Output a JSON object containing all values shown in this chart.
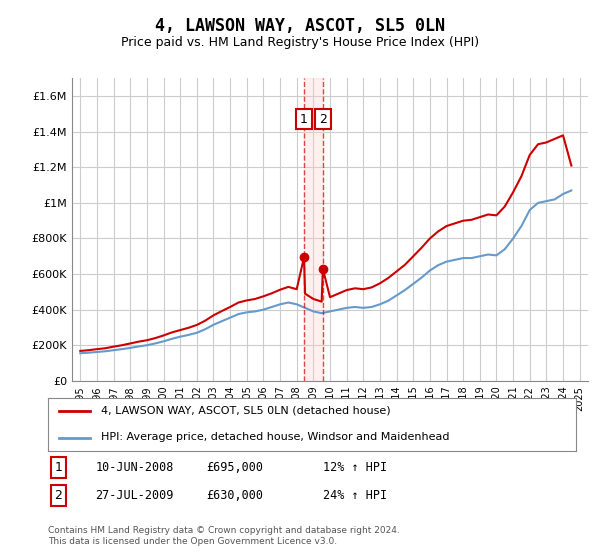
{
  "title": "4, LAWSON WAY, ASCOT, SL5 0LN",
  "subtitle": "Price paid vs. HM Land Registry's House Price Index (HPI)",
  "legend_line1": "4, LAWSON WAY, ASCOT, SL5 0LN (detached house)",
  "legend_line2": "HPI: Average price, detached house, Windsor and Maidenhead",
  "footnote": "Contains HM Land Registry data © Crown copyright and database right 2024.\nThis data is licensed under the Open Government Licence v3.0.",
  "sale1_date": "10-JUN-2008",
  "sale1_price": "£695,000",
  "sale1_hpi": "12% ↑ HPI",
  "sale1_year": 2008.44,
  "sale2_date": "27-JUL-2009",
  "sale2_price": "£630,000",
  "sale2_hpi": "24% ↑ HPI",
  "sale2_year": 2009.57,
  "red_color": "#cc0000",
  "blue_color": "#6699cc",
  "background_color": "#ffffff",
  "grid_color": "#cccccc",
  "ylim": [
    0,
    1700000
  ],
  "yticks": [
    0,
    200000,
    400000,
    600000,
    800000,
    1000000,
    1200000,
    1400000,
    1600000
  ],
  "ytick_labels": [
    "£0",
    "£200K",
    "£400K",
    "£600K",
    "£800K",
    "£1M",
    "£1.2M",
    "£1.4M",
    "£1.6M"
  ],
  "hpi_years": [
    1995,
    1995.5,
    1996,
    1996.5,
    1997,
    1997.5,
    1998,
    1998.5,
    1999,
    1999.5,
    2000,
    2000.5,
    2001,
    2001.5,
    2002,
    2002.5,
    2003,
    2003.5,
    2004,
    2004.5,
    2005,
    2005.5,
    2006,
    2006.5,
    2007,
    2007.5,
    2008,
    2008.5,
    2009,
    2009.5,
    2010,
    2010.5,
    2011,
    2011.5,
    2012,
    2012.5,
    2013,
    2013.5,
    2014,
    2014.5,
    2015,
    2015.5,
    2016,
    2016.5,
    2017,
    2017.5,
    2018,
    2018.5,
    2019,
    2019.5,
    2020,
    2020.5,
    2021,
    2021.5,
    2022,
    2022.5,
    2023,
    2023.5,
    2024,
    2024.5
  ],
  "hpi_values": [
    155000,
    158000,
    162000,
    166000,
    172000,
    178000,
    185000,
    193000,
    200000,
    210000,
    222000,
    236000,
    248000,
    258000,
    270000,
    290000,
    315000,
    335000,
    355000,
    375000,
    385000,
    390000,
    400000,
    415000,
    430000,
    440000,
    430000,
    410000,
    390000,
    380000,
    390000,
    400000,
    410000,
    415000,
    410000,
    415000,
    430000,
    450000,
    480000,
    510000,
    545000,
    580000,
    620000,
    650000,
    670000,
    680000,
    690000,
    690000,
    700000,
    710000,
    705000,
    740000,
    800000,
    870000,
    960000,
    1000000,
    1010000,
    1020000,
    1050000,
    1070000
  ],
  "red_years": [
    1995,
    1995.5,
    1996,
    1996.5,
    1997,
    1997.5,
    1998,
    1998.5,
    1999,
    1999.5,
    2000,
    2000.5,
    2001,
    2001.5,
    2002,
    2002.5,
    2003,
    2003.5,
    2004,
    2004.5,
    2005,
    2005.5,
    2006,
    2006.5,
    2007,
    2007.5,
    2008,
    2008.44,
    2008.5,
    2009,
    2009.5,
    2009.57,
    2010,
    2010.5,
    2011,
    2011.5,
    2012,
    2012.5,
    2013,
    2013.5,
    2014,
    2014.5,
    2015,
    2015.5,
    2016,
    2016.5,
    2017,
    2017.5,
    2018,
    2018.5,
    2019,
    2019.5,
    2020,
    2020.5,
    2021,
    2021.5,
    2022,
    2022.5,
    2023,
    2023.5,
    2024,
    2024.5
  ],
  "red_values": [
    168000,
    172000,
    178000,
    183000,
    192000,
    200000,
    210000,
    220000,
    228000,
    240000,
    255000,
    272000,
    285000,
    298000,
    314000,
    338000,
    368000,
    392000,
    415000,
    440000,
    452000,
    460000,
    475000,
    492000,
    512000,
    528000,
    515000,
    695000,
    490000,
    460000,
    445000,
    630000,
    470000,
    490000,
    510000,
    520000,
    515000,
    525000,
    548000,
    578000,
    615000,
    652000,
    700000,
    748000,
    800000,
    840000,
    870000,
    885000,
    900000,
    905000,
    920000,
    935000,
    930000,
    980000,
    1060000,
    1150000,
    1270000,
    1330000,
    1340000,
    1360000,
    1380000,
    1210000
  ]
}
